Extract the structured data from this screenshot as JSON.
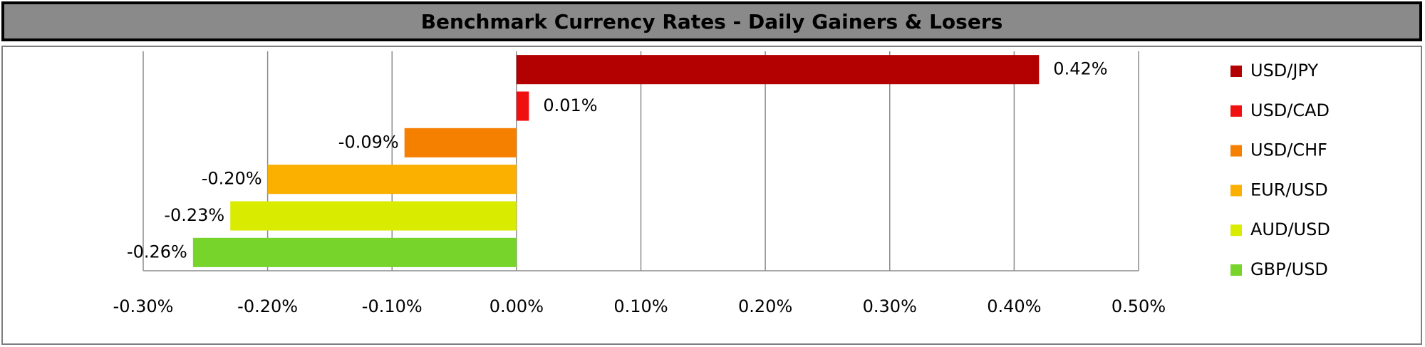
{
  "chart_data": {
    "type": "bar",
    "orientation": "horizontal",
    "title": "Benchmark Currency Rates - Daily Gainers & Losers",
    "series": [
      {
        "name": "USD/JPY",
        "color": "#b30000",
        "values": [
          0.42
        ],
        "value_labels": [
          "0.42%"
        ]
      },
      {
        "name": "USD/CAD",
        "color": "#f01010",
        "values": [
          0.01
        ],
        "value_labels": [
          "0.01%"
        ]
      },
      {
        "name": "USD/CHF",
        "color": "#f58000",
        "values": [
          -0.09
        ],
        "value_labels": [
          "-0.09%"
        ]
      },
      {
        "name": "EUR/USD",
        "color": "#fbb000",
        "values": [
          -0.2
        ],
        "value_labels": [
          "-0.20%"
        ]
      },
      {
        "name": "AUD/USD",
        "color": "#d9ec00",
        "values": [
          -0.23
        ],
        "value_labels": [
          "-0.23%"
        ]
      },
      {
        "name": "GBP/USD",
        "color": "#77d42a",
        "values": [
          -0.26
        ],
        "value_labels": [
          "-0.26%"
        ]
      }
    ],
    "xlim": [
      -0.3,
      0.5
    ],
    "xticks": [
      {
        "value": -0.3,
        "label": "-0.30%"
      },
      {
        "value": -0.2,
        "label": "-0.20%"
      },
      {
        "value": -0.1,
        "label": "-0.10%"
      },
      {
        "value": 0,
        "label": "0.00%"
      },
      {
        "value": 0.1,
        "label": "0.10%"
      },
      {
        "value": 0.2,
        "label": "0.20%"
      },
      {
        "value": 0.3,
        "label": "0.30%"
      },
      {
        "value": 0.4,
        "label": "0.40%"
      },
      {
        "value": 0.5,
        "label": "0.50%"
      }
    ],
    "grid": true,
    "legend": "right"
  }
}
